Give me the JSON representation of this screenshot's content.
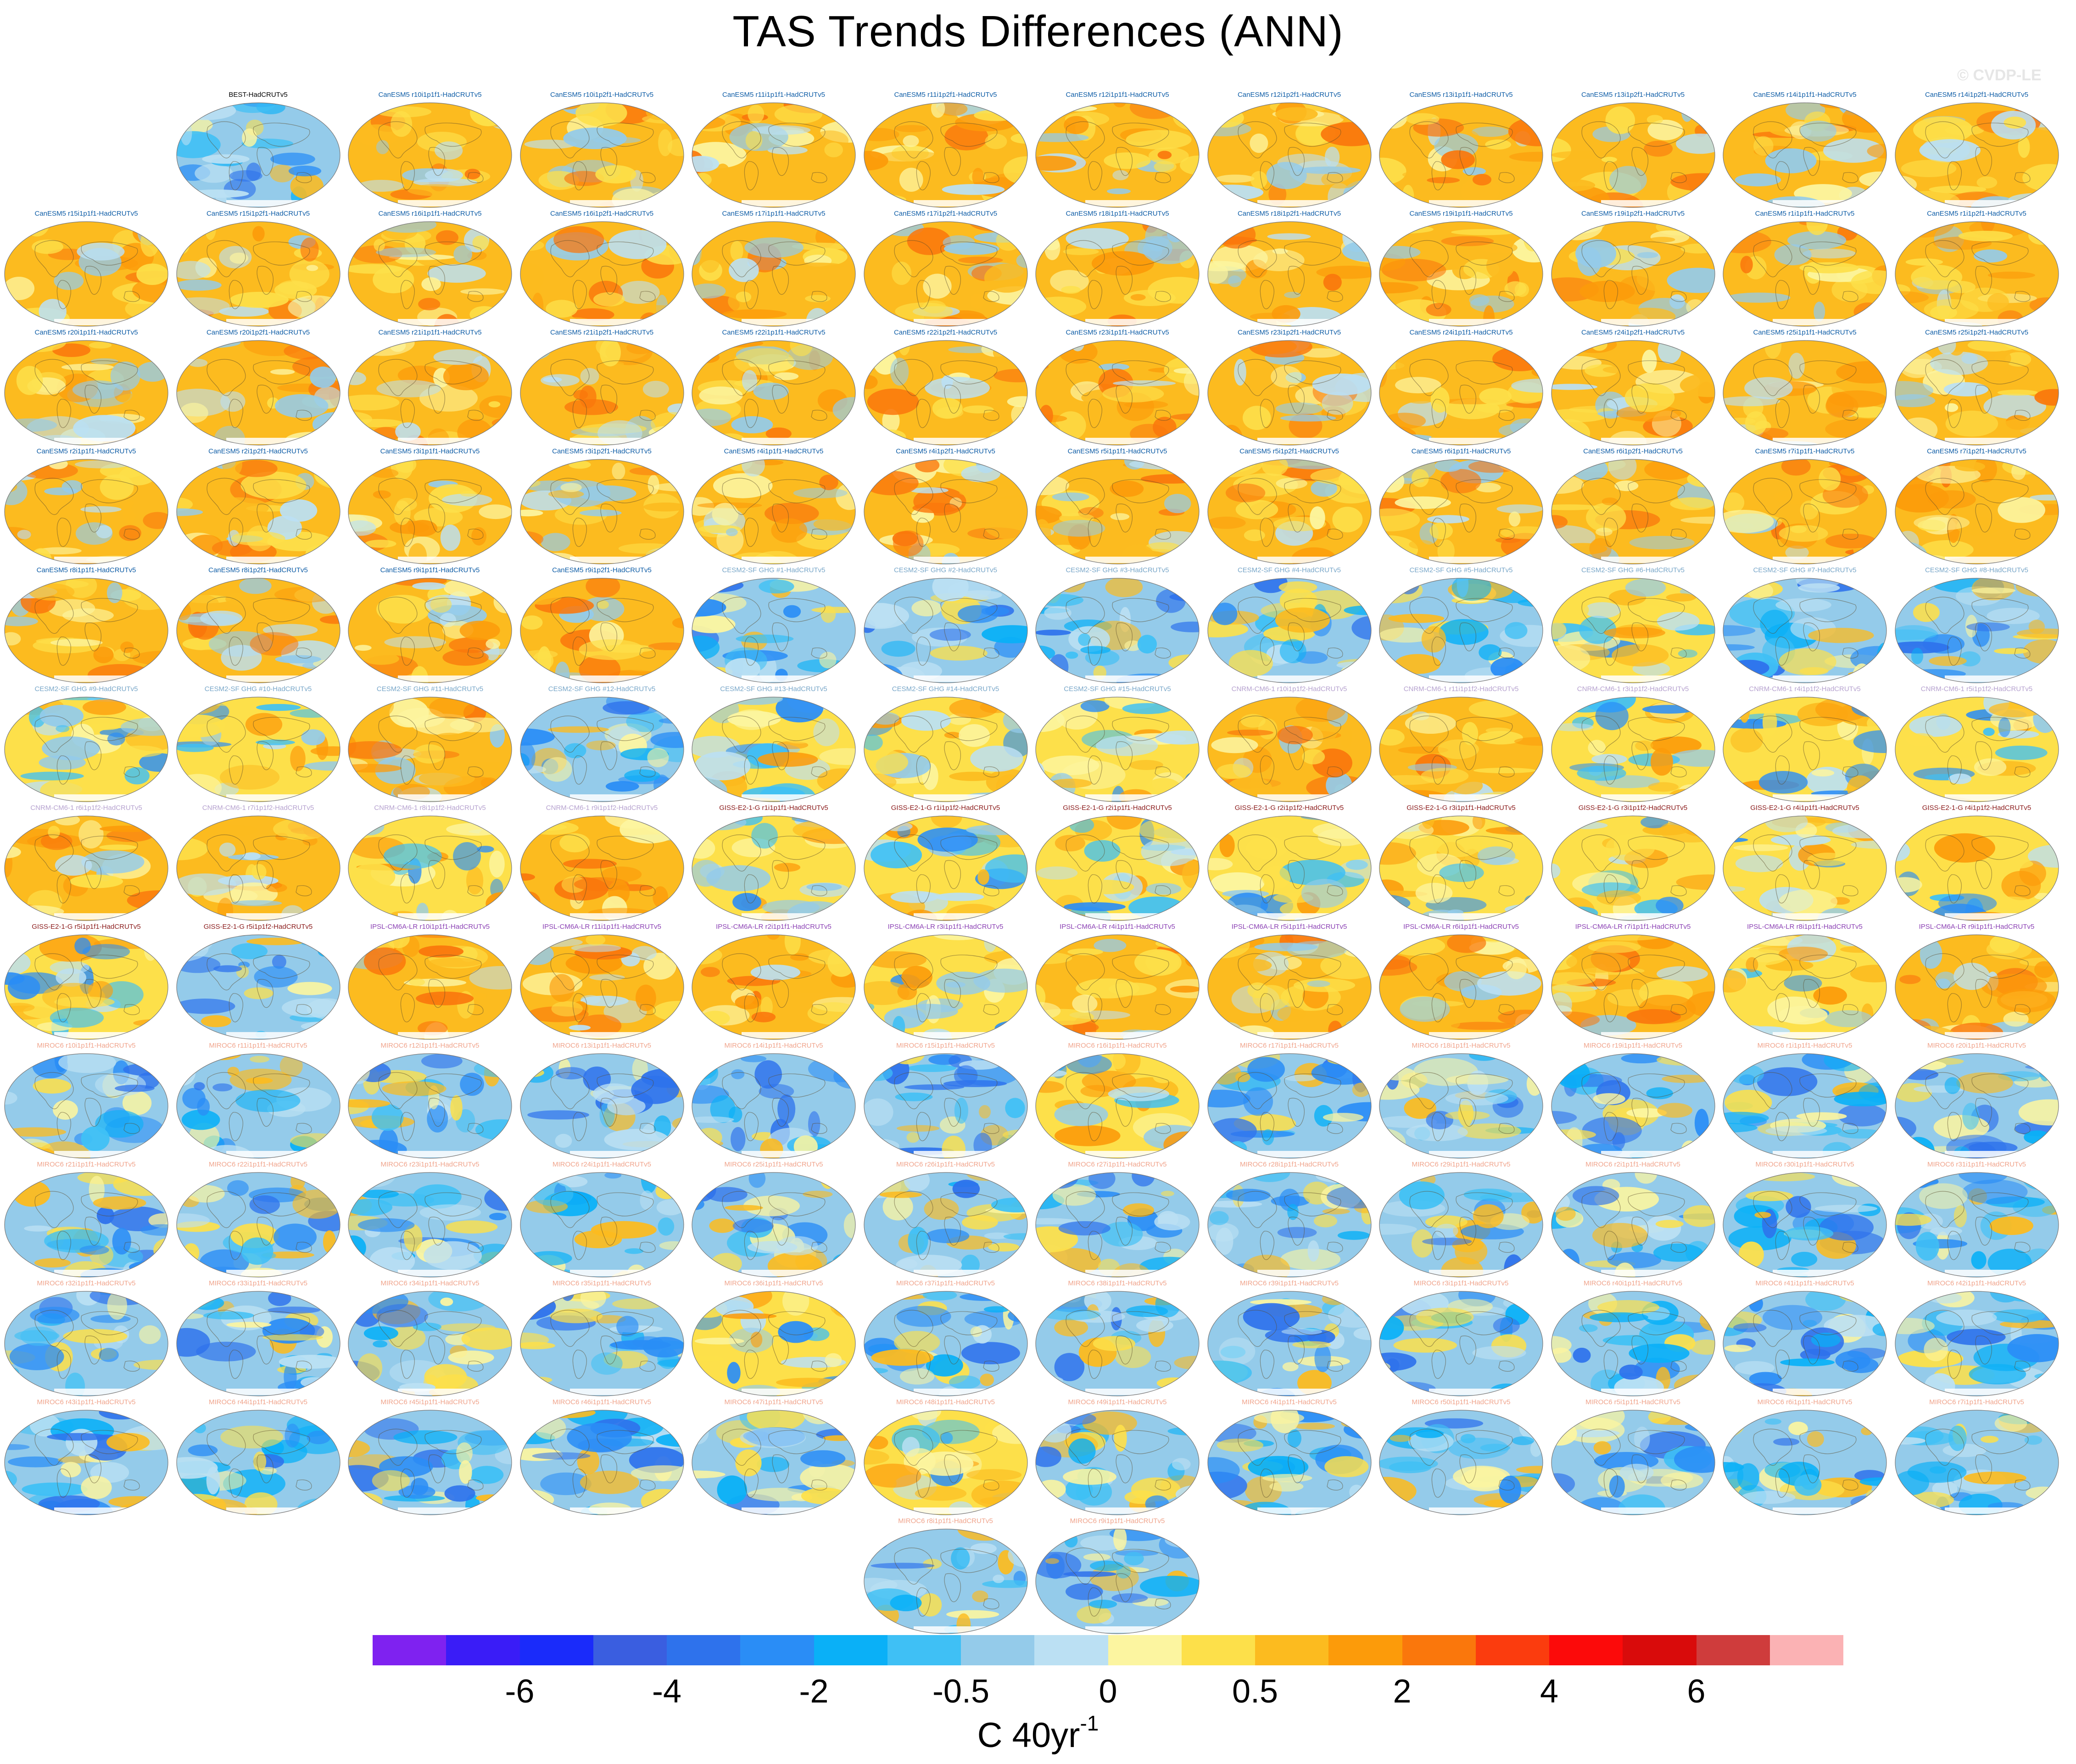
{
  "title": "TAS Trends Differences (ANN)",
  "watermark": "© CVDP-LE",
  "units": {
    "base": "C 40yr",
    "superscript": "-1"
  },
  "colorbar": {
    "colors": [
      "#7f22f0",
      "#3a1cf7",
      "#1a2bfa",
      "#3a5ee0",
      "#2e72ec",
      "#2a8df6",
      "#0ab0f7",
      "#3fc0f5",
      "#94cbea",
      "#bbe0f3",
      "#fcf5a0",
      "#fde04a",
      "#fcbb1f",
      "#fc9b0a",
      "#fa770c",
      "#fb3c0e",
      "#fc0a0a",
      "#d90b0b",
      "#cf3c3c",
      "#fbb2b4"
    ],
    "tick_labels": [
      "-6",
      "-4",
      "-2",
      "-0.5",
      "0",
      "0.5",
      "2",
      "4",
      "6"
    ],
    "tick_after_box": [
      2,
      4,
      6,
      8,
      10,
      12,
      14,
      16,
      18
    ]
  },
  "scheme_colors": {
    "BEST": "#000000",
    "CanESM5": "#0d5ca6",
    "CESM2-SF GHG": "#79a7c9",
    "CNRM-CM6-1": "#b6a2cf",
    "GISS-E2-1-G": "#8a1a1a",
    "IPSL-CM6A-LR": "#8b41b4",
    "MIROC6": "#f0a48c"
  },
  "panels": [
    {
      "label": "BEST-HadCRUTv5",
      "model": "BEST",
      "scheme": "cool"
    },
    {
      "label": "CanESM5 r10i1p1f1-HadCRUTv5",
      "model": "CanESM5",
      "scheme": "warm"
    },
    {
      "label": "CanESM5 r10i1p2f1-HadCRUTv5",
      "model": "CanESM5",
      "scheme": "warm"
    },
    {
      "label": "CanESM5 r11i1p1f1-HadCRUTv5",
      "model": "CanESM5",
      "scheme": "warm"
    },
    {
      "label": "CanESM5 r11i1p2f1-HadCRUTv5",
      "model": "CanESM5",
      "scheme": "warm"
    },
    {
      "label": "CanESM5 r12i1p1f1-HadCRUTv5",
      "model": "CanESM5",
      "scheme": "warm"
    },
    {
      "label": "CanESM5 r12i1p2f1-HadCRUTv5",
      "model": "CanESM5",
      "scheme": "warm"
    },
    {
      "label": "CanESM5 r13i1p1f1-HadCRUTv5",
      "model": "CanESM5",
      "scheme": "warm"
    },
    {
      "label": "CanESM5 r13i1p2f1-HadCRUTv5",
      "model": "CanESM5",
      "scheme": "warm"
    },
    {
      "label": "CanESM5 r14i1p1f1-HadCRUTv5",
      "model": "CanESM5",
      "scheme": "warm"
    },
    {
      "label": "CanESM5 r14i1p2f1-HadCRUTv5",
      "model": "CanESM5",
      "scheme": "warm"
    },
    {
      "label": "CanESM5 r15i1p1f1-HadCRUTv5",
      "model": "CanESM5",
      "scheme": "warm"
    },
    {
      "label": "CanESM5 r15i1p2f1-HadCRUTv5",
      "model": "CanESM5",
      "scheme": "warm"
    },
    {
      "label": "CanESM5 r16i1p1f1-HadCRUTv5",
      "model": "CanESM5",
      "scheme": "warm"
    },
    {
      "label": "CanESM5 r16i1p2f1-HadCRUTv5",
      "model": "CanESM5",
      "scheme": "warm"
    },
    {
      "label": "CanESM5 r17i1p1f1-HadCRUTv5",
      "model": "CanESM5",
      "scheme": "warm"
    },
    {
      "label": "CanESM5 r17i1p2f1-HadCRUTv5",
      "model": "CanESM5",
      "scheme": "warm"
    },
    {
      "label": "CanESM5 r18i1p1f1-HadCRUTv5",
      "model": "CanESM5",
      "scheme": "warm"
    },
    {
      "label": "CanESM5 r18i1p2f1-HadCRUTv5",
      "model": "CanESM5",
      "scheme": "warm"
    },
    {
      "label": "CanESM5 r19i1p1f1-HadCRUTv5",
      "model": "CanESM5",
      "scheme": "warm"
    },
    {
      "label": "CanESM5 r19i1p2f1-HadCRUTv5",
      "model": "CanESM5",
      "scheme": "warm"
    },
    {
      "label": "CanESM5 r1i1p1f1-HadCRUTv5",
      "model": "CanESM5",
      "scheme": "warm"
    },
    {
      "label": "CanESM5 r1i1p2f1-HadCRUTv5",
      "model": "CanESM5",
      "scheme": "warm"
    },
    {
      "label": "CanESM5 r20i1p1f1-HadCRUTv5",
      "model": "CanESM5",
      "scheme": "warm"
    },
    {
      "label": "CanESM5 r20i1p2f1-HadCRUTv5",
      "model": "CanESM5",
      "scheme": "warm"
    },
    {
      "label": "CanESM5 r21i1p1f1-HadCRUTv5",
      "model": "CanESM5",
      "scheme": "warm"
    },
    {
      "label": "CanESM5 r21i1p2f1-HadCRUTv5",
      "model": "CanESM5",
      "scheme": "warm"
    },
    {
      "label": "CanESM5 r22i1p1f1-HadCRUTv5",
      "model": "CanESM5",
      "scheme": "warm"
    },
    {
      "label": "CanESM5 r22i1p2f1-HadCRUTv5",
      "model": "CanESM5",
      "scheme": "warm"
    },
    {
      "label": "CanESM5 r23i1p1f1-HadCRUTv5",
      "model": "CanESM5",
      "scheme": "warm"
    },
    {
      "label": "CanESM5 r23i1p2f1-HadCRUTv5",
      "model": "CanESM5",
      "scheme": "warm"
    },
    {
      "label": "CanESM5 r24i1p1f1-HadCRUTv5",
      "model": "CanESM5",
      "scheme": "warm"
    },
    {
      "label": "CanESM5 r24i1p2f1-HadCRUTv5",
      "model": "CanESM5",
      "scheme": "warm"
    },
    {
      "label": "CanESM5 r25i1p1f1-HadCRUTv5",
      "model": "CanESM5",
      "scheme": "warm"
    },
    {
      "label": "CanESM5 r25i1p2f1-HadCRUTv5",
      "model": "CanESM5",
      "scheme": "warm"
    },
    {
      "label": "CanESM5 r2i1p1f1-HadCRUTv5",
      "model": "CanESM5",
      "scheme": "warm"
    },
    {
      "label": "CanESM5 r2i1p2f1-HadCRUTv5",
      "model": "CanESM5",
      "scheme": "warm"
    },
    {
      "label": "CanESM5 r3i1p1f1-HadCRUTv5",
      "model": "CanESM5",
      "scheme": "warm"
    },
    {
      "label": "CanESM5 r3i1p2f1-HadCRUTv5",
      "model": "CanESM5",
      "scheme": "warm"
    },
    {
      "label": "CanESM5 r4i1p1f1-HadCRUTv5",
      "model": "CanESM5",
      "scheme": "warm"
    },
    {
      "label": "CanESM5 r4i1p2f1-HadCRUTv5",
      "model": "CanESM5",
      "scheme": "warm"
    },
    {
      "label": "CanESM5 r5i1p1f1-HadCRUTv5",
      "model": "CanESM5",
      "scheme": "warm"
    },
    {
      "label": "CanESM5 r5i1p2f1-HadCRUTv5",
      "model": "CanESM5",
      "scheme": "warm"
    },
    {
      "label": "CanESM5 r6i1p1f1-HadCRUTv5",
      "model": "CanESM5",
      "scheme": "warm"
    },
    {
      "label": "CanESM5 r6i1p2f1-HadCRUTv5",
      "model": "CanESM5",
      "scheme": "warm"
    },
    {
      "label": "CanESM5 r7i1p1f1-HadCRUTv5",
      "model": "CanESM5",
      "scheme": "warm"
    },
    {
      "label": "CanESM5 r7i1p2f1-HadCRUTv5",
      "model": "CanESM5",
      "scheme": "warm"
    },
    {
      "label": "CanESM5 r8i1p1f1-HadCRUTv5",
      "model": "CanESM5",
      "scheme": "warm"
    },
    {
      "label": "CanESM5 r8i1p2f1-HadCRUTv5",
      "model": "CanESM5",
      "scheme": "warm"
    },
    {
      "label": "CanESM5 r9i1p1f1-HadCRUTv5",
      "model": "CanESM5",
      "scheme": "warm"
    },
    {
      "label": "CanESM5 r9i1p2f1-HadCRUTv5",
      "model": "CanESM5",
      "scheme": "warm"
    },
    {
      "label": "CESM2-SF GHG #1-HadCRUTv5",
      "model": "CESM2-SF GHG",
      "scheme": "cool"
    },
    {
      "label": "CESM2-SF GHG #2-HadCRUTv5",
      "model": "CESM2-SF GHG",
      "scheme": "cool"
    },
    {
      "label": "CESM2-SF GHG #3-HadCRUTv5",
      "model": "CESM2-SF GHG",
      "scheme": "cool"
    },
    {
      "label": "CESM2-SF GHG #4-HadCRUTv5",
      "model": "CESM2-SF GHG",
      "scheme": "cool"
    },
    {
      "label": "CESM2-SF GHG #5-HadCRUTv5",
      "model": "CESM2-SF GHG",
      "scheme": "cool"
    },
    {
      "label": "CESM2-SF GHG #6-HadCRUTv5",
      "model": "CESM2-SF GHG",
      "scheme": "mixed"
    },
    {
      "label": "CESM2-SF GHG #7-HadCRUTv5",
      "model": "CESM2-SF GHG",
      "scheme": "cool"
    },
    {
      "label": "CESM2-SF GHG #8-HadCRUTv5",
      "model": "CESM2-SF GHG",
      "scheme": "cool"
    },
    {
      "label": "CESM2-SF GHG #9-HadCRUTv5",
      "model": "CESM2-SF GHG",
      "scheme": "mixed"
    },
    {
      "label": "CESM2-SF GHG #10-HadCRUTv5",
      "model": "CESM2-SF GHG",
      "scheme": "mixed"
    },
    {
      "label": "CESM2-SF GHG #11-HadCRUTv5",
      "model": "CESM2-SF GHG",
      "scheme": "warm"
    },
    {
      "label": "CESM2-SF GHG #12-HadCRUTv5",
      "model": "CESM2-SF GHG",
      "scheme": "cool"
    },
    {
      "label": "CESM2-SF GHG #13-HadCRUTv5",
      "model": "CESM2-SF GHG",
      "scheme": "mixed"
    },
    {
      "label": "CESM2-SF GHG #14-HadCRUTv5",
      "model": "CESM2-SF GHG",
      "scheme": "mixed"
    },
    {
      "label": "CESM2-SF GHG #15-HadCRUTv5",
      "model": "CESM2-SF GHG",
      "scheme": "mixed"
    },
    {
      "label": "CNRM-CM6-1 r10i1p1f2-HadCRUTv5",
      "model": "CNRM-CM6-1",
      "scheme": "warm"
    },
    {
      "label": "CNRM-CM6-1 r11i1p1f2-HadCRUTv5",
      "model": "CNRM-CM6-1",
      "scheme": "warm"
    },
    {
      "label": "CNRM-CM6-1 r3i1p1f2-HadCRUTv5",
      "model": "CNRM-CM6-1",
      "scheme": "mixed"
    },
    {
      "label": "CNRM-CM6-1 r4i1p1f2-HadCRUTv5",
      "model": "CNRM-CM6-1",
      "scheme": "mixed"
    },
    {
      "label": "CNRM-CM6-1 r5i1p1f2-HadCRUTv5",
      "model": "CNRM-CM6-1",
      "scheme": "mixed"
    },
    {
      "label": "CNRM-CM6-1 r6i1p1f2-HadCRUTv5",
      "model": "CNRM-CM6-1",
      "scheme": "warm"
    },
    {
      "label": "CNRM-CM6-1 r7i1p1f2-HadCRUTv5",
      "model": "CNRM-CM6-1",
      "scheme": "warm"
    },
    {
      "label": "CNRM-CM6-1 r8i1p1f2-HadCRUTv5",
      "model": "CNRM-CM6-1",
      "scheme": "mixed"
    },
    {
      "label": "CNRM-CM6-1 r9i1p1f2-HadCRUTv5",
      "model": "CNRM-CM6-1",
      "scheme": "warm"
    },
    {
      "label": "GISS-E2-1-G r1i1p1f1-HadCRUTv5",
      "model": "GISS-E2-1-G",
      "scheme": "mixed"
    },
    {
      "label": "GISS-E2-1-G r1i1p1f2-HadCRUTv5",
      "model": "GISS-E2-1-G",
      "scheme": "mixed"
    },
    {
      "label": "GISS-E2-1-G r2i1p1f1-HadCRUTv5",
      "model": "GISS-E2-1-G",
      "scheme": "mixed"
    },
    {
      "label": "GISS-E2-1-G r2i1p1f2-HadCRUTv5",
      "model": "GISS-E2-1-G",
      "scheme": "mixed"
    },
    {
      "label": "GISS-E2-1-G r3i1p1f1-HadCRUTv5",
      "model": "GISS-E2-1-G",
      "scheme": "mixed"
    },
    {
      "label": "GISS-E2-1-G r3i1p1f2-HadCRUTv5",
      "model": "GISS-E2-1-G",
      "scheme": "mixed"
    },
    {
      "label": "GISS-E2-1-G r4i1p1f1-HadCRUTv5",
      "model": "GISS-E2-1-G",
      "scheme": "mixed"
    },
    {
      "label": "GISS-E2-1-G r4i1p1f2-HadCRUTv5",
      "model": "GISS-E2-1-G",
      "scheme": "mixed"
    },
    {
      "label": "GISS-E2-1-G r5i1p1f1-HadCRUTv5",
      "model": "GISS-E2-1-G",
      "scheme": "mixed"
    },
    {
      "label": "GISS-E2-1-G r5i1p1f2-HadCRUTv5",
      "model": "GISS-E2-1-G",
      "scheme": "cool"
    },
    {
      "label": "IPSL-CM6A-LR r10i1p1f1-HadCRUTv5",
      "model": "IPSL-CM6A-LR",
      "scheme": "warm"
    },
    {
      "label": "IPSL-CM6A-LR r11i1p1f1-HadCRUTv5",
      "model": "IPSL-CM6A-LR",
      "scheme": "warm"
    },
    {
      "label": "IPSL-CM6A-LR r2i1p1f1-HadCRUTv5",
      "model": "IPSL-CM6A-LR",
      "scheme": "warm"
    },
    {
      "label": "IPSL-CM6A-LR r3i1p1f1-HadCRUTv5",
      "model": "IPSL-CM6A-LR",
      "scheme": "mixed"
    },
    {
      "label": "IPSL-CM6A-LR r4i1p1f1-HadCRUTv5",
      "model": "IPSL-CM6A-LR",
      "scheme": "warm"
    },
    {
      "label": "IPSL-CM6A-LR r5i1p1f1-HadCRUTv5",
      "model": "IPSL-CM6A-LR",
      "scheme": "warm"
    },
    {
      "label": "IPSL-CM6A-LR r6i1p1f1-HadCRUTv5",
      "model": "IPSL-CM6A-LR",
      "scheme": "warm"
    },
    {
      "label": "IPSL-CM6A-LR r7i1p1f1-HadCRUTv5",
      "model": "IPSL-CM6A-LR",
      "scheme": "warm"
    },
    {
      "label": "IPSL-CM6A-LR r8i1p1f1-HadCRUTv5",
      "model": "IPSL-CM6A-LR",
      "scheme": "mixed"
    },
    {
      "label": "IPSL-CM6A-LR r9i1p1f1-HadCRUTv5",
      "model": "IPSL-CM6A-LR",
      "scheme": "warm"
    },
    {
      "label": "MIROC6 r10i1p1f1-HadCRUTv5",
      "model": "MIROC6",
      "scheme": "cool"
    },
    {
      "label": "MIROC6 r11i1p1f1-HadCRUTv5",
      "model": "MIROC6",
      "scheme": "cool"
    },
    {
      "label": "MIROC6 r12i1p1f1-HadCRUTv5",
      "model": "MIROC6",
      "scheme": "cool"
    },
    {
      "label": "MIROC6 r13i1p1f1-HadCRUTv5",
      "model": "MIROC6",
      "scheme": "cool"
    },
    {
      "label": "MIROC6 r14i1p1f1-HadCRUTv5",
      "model": "MIROC6",
      "scheme": "cool"
    },
    {
      "label": "MIROC6 r15i1p1f1-HadCRUTv5",
      "model": "MIROC6",
      "scheme": "cool"
    },
    {
      "label": "MIROC6 r16i1p1f1-HadCRUTv5",
      "model": "MIROC6",
      "scheme": "mixed"
    },
    {
      "label": "MIROC6 r17i1p1f1-HadCRUTv5",
      "model": "MIROC6",
      "scheme": "cool"
    },
    {
      "label": "MIROC6 r18i1p1f1-HadCRUTv5",
      "model": "MIROC6",
      "scheme": "cool"
    },
    {
      "label": "MIROC6 r19i1p1f1-HadCRUTv5",
      "model": "MIROC6",
      "scheme": "cool"
    },
    {
      "label": "MIROC6 r1i1p1f1-HadCRUTv5",
      "model": "MIROC6",
      "scheme": "cool"
    },
    {
      "label": "MIROC6 r20i1p1f1-HadCRUTv5",
      "model": "MIROC6",
      "scheme": "cool"
    },
    {
      "label": "MIROC6 r21i1p1f1-HadCRUTv5",
      "model": "MIROC6",
      "scheme": "cool"
    },
    {
      "label": "MIROC6 r22i1p1f1-HadCRUTv5",
      "model": "MIROC6",
      "scheme": "cool"
    },
    {
      "label": "MIROC6 r23i1p1f1-HadCRUTv5",
      "model": "MIROC6",
      "scheme": "cool"
    },
    {
      "label": "MIROC6 r24i1p1f1-HadCRUTv5",
      "model": "MIROC6",
      "scheme": "cool"
    },
    {
      "label": "MIROC6 r25i1p1f1-HadCRUTv5",
      "model": "MIROC6",
      "scheme": "cool"
    },
    {
      "label": "MIROC6 r26i1p1f1-HadCRUTv5",
      "model": "MIROC6",
      "scheme": "cool"
    },
    {
      "label": "MIROC6 r27i1p1f1-HadCRUTv5",
      "model": "MIROC6",
      "scheme": "cool"
    },
    {
      "label": "MIROC6 r28i1p1f1-HadCRUTv5",
      "model": "MIROC6",
      "scheme": "cool"
    },
    {
      "label": "MIROC6 r29i1p1f1-HadCRUTv5",
      "model": "MIROC6",
      "scheme": "cool"
    },
    {
      "label": "MIROC6 r2i1p1f1-HadCRUTv5",
      "model": "MIROC6",
      "scheme": "cool"
    },
    {
      "label": "MIROC6 r30i1p1f1-HadCRUTv5",
      "model": "MIROC6",
      "scheme": "cool"
    },
    {
      "label": "MIROC6 r31i1p1f1-HadCRUTv5",
      "model": "MIROC6",
      "scheme": "cool"
    },
    {
      "label": "MIROC6 r32i1p1f1-HadCRUTv5",
      "model": "MIROC6",
      "scheme": "cool"
    },
    {
      "label": "MIROC6 r33i1p1f1-HadCRUTv5",
      "model": "MIROC6",
      "scheme": "cool"
    },
    {
      "label": "MIROC6 r34i1p1f1-HadCRUTv5",
      "model": "MIROC6",
      "scheme": "cool"
    },
    {
      "label": "MIROC6 r35i1p1f1-HadCRUTv5",
      "model": "MIROC6",
      "scheme": "cool"
    },
    {
      "label": "MIROC6 r36i1p1f1-HadCRUTv5",
      "model": "MIROC6",
      "scheme": "mixed"
    },
    {
      "label": "MIROC6 r37i1p1f1-HadCRUTv5",
      "model": "MIROC6",
      "scheme": "cool"
    },
    {
      "label": "MIROC6 r38i1p1f1-HadCRUTv5",
      "model": "MIROC6",
      "scheme": "cool"
    },
    {
      "label": "MIROC6 r39i1p1f1-HadCRUTv5",
      "model": "MIROC6",
      "scheme": "cool"
    },
    {
      "label": "MIROC6 r3i1p1f1-HadCRUTv5",
      "model": "MIROC6",
      "scheme": "cool"
    },
    {
      "label": "MIROC6 r40i1p1f1-HadCRUTv5",
      "model": "MIROC6",
      "scheme": "cool"
    },
    {
      "label": "MIROC6 r41i1p1f1-HadCRUTv5",
      "model": "MIROC6",
      "scheme": "cool"
    },
    {
      "label": "MIROC6 r42i1p1f1-HadCRUTv5",
      "model": "MIROC6",
      "scheme": "cool"
    },
    {
      "label": "MIROC6 r43i1p1f1-HadCRUTv5",
      "model": "MIROC6",
      "scheme": "cool"
    },
    {
      "label": "MIROC6 r44i1p1f1-HadCRUTv5",
      "model": "MIROC6",
      "scheme": "cool"
    },
    {
      "label": "MIROC6 r45i1p1f1-HadCRUTv5",
      "model": "MIROC6",
      "scheme": "cool"
    },
    {
      "label": "MIROC6 r46i1p1f1-HadCRUTv5",
      "model": "MIROC6",
      "scheme": "cool"
    },
    {
      "label": "MIROC6 r47i1p1f1-HadCRUTv5",
      "model": "MIROC6",
      "scheme": "cool"
    },
    {
      "label": "MIROC6 r48i1p1f1-HadCRUTv5",
      "model": "MIROC6",
      "scheme": "mixed"
    },
    {
      "label": "MIROC6 r49i1p1f1-HadCRUTv5",
      "model": "MIROC6",
      "scheme": "cool"
    },
    {
      "label": "MIROC6 r4i1p1f1-HadCRUTv5",
      "model": "MIROC6",
      "scheme": "cool"
    },
    {
      "label": "MIROC6 r50i1p1f1-HadCRUTv5",
      "model": "MIROC6",
      "scheme": "cool"
    },
    {
      "label": "MIROC6 r5i1p1f1-HadCRUTv5",
      "model": "MIROC6",
      "scheme": "cool"
    },
    {
      "label": "MIROC6 r6i1p1f1-HadCRUTv5",
      "model": "MIROC6",
      "scheme": "cool"
    },
    {
      "label": "MIROC6 r7i1p1f1-HadCRUTv5",
      "model": "MIROC6",
      "scheme": "cool"
    },
    {
      "label": "MIROC6 r8i1p1f1-HadCRUTv5",
      "model": "MIROC6",
      "scheme": "cool"
    },
    {
      "label": "MIROC6 r9i1p1f1-HadCRUTv5",
      "model": "MIROC6",
      "scheme": "cool"
    }
  ]
}
